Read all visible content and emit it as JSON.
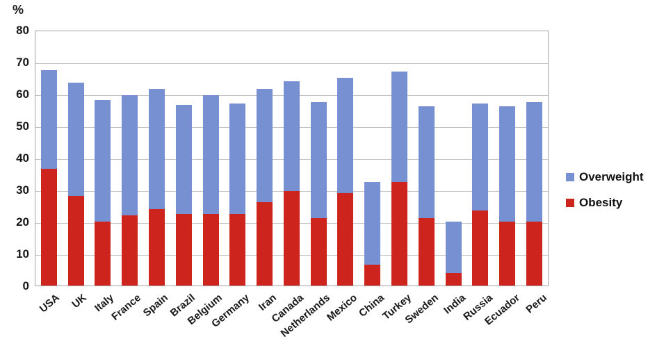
{
  "chart_data": {
    "type": "stacked-bar",
    "title": "",
    "ylabel": "%",
    "xlabel": "",
    "ylim": [
      0,
      80
    ],
    "ytick_step": 10,
    "yticks": [
      0,
      10,
      20,
      30,
      40,
      50,
      60,
      70,
      80
    ],
    "grid": true,
    "legend_position": "right",
    "categories": [
      "USA",
      "UK",
      "Italy",
      "France",
      "Spain",
      "Brazil",
      "Belgium",
      "Germany",
      "Iran",
      "Canada",
      "Netherlands",
      "Mexico",
      "China",
      "Turkey",
      "Sweden",
      "India",
      "Russia",
      "Ecuador",
      "Peru"
    ],
    "series": [
      {
        "name": "Overweight",
        "color": "#7690D2",
        "stack_order": "top",
        "values": [
          31,
          35.5,
          38,
          37.5,
          37.5,
          34,
          37,
          34.5,
          35.5,
          34.5,
          36.5,
          36,
          26,
          34.5,
          35,
          16,
          33.5,
          36,
          37.5
        ]
      },
      {
        "name": "Obesity",
        "color": "#CE241E",
        "stack_order": "bottom",
        "values": [
          36.5,
          28,
          20,
          22,
          24,
          22.5,
          22.5,
          22.5,
          26,
          29.5,
          21,
          29,
          6.5,
          32.5,
          21,
          4,
          23.5,
          20,
          20
        ]
      }
    ],
    "totals": [
      67.5,
      63.5,
      58,
      59.5,
      61.5,
      56.5,
      59.5,
      57,
      61.5,
      64,
      57.5,
      65,
      32.5,
      67,
      56,
      20,
      57,
      56,
      57.5
    ]
  },
  "colors": {
    "gridline": "#C3C3C3",
    "axis_border": "#A3A3A3",
    "text": "#1A1A1A",
    "background": "#FFFFFF"
  }
}
